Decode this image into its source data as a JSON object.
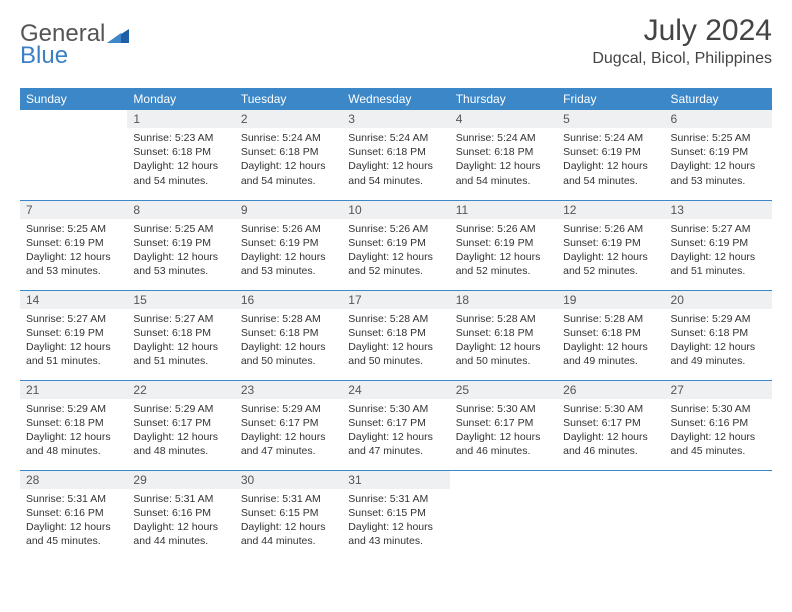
{
  "logo": {
    "text1": "General",
    "text2": "Blue"
  },
  "title": "July 2024",
  "location": "Dugcal, Bicol, Philippines",
  "colors": {
    "header_bg": "#3b87c8",
    "header_fg": "#ffffff",
    "daynum_bg": "#eef0f2",
    "rule": "#3b87c8"
  },
  "weekdays": [
    "Sunday",
    "Monday",
    "Tuesday",
    "Wednesday",
    "Thursday",
    "Friday",
    "Saturday"
  ],
  "weeks": [
    [
      {
        "n": "",
        "sr": "",
        "ss": "",
        "dl": ""
      },
      {
        "n": "1",
        "sr": "Sunrise: 5:23 AM",
        "ss": "Sunset: 6:18 PM",
        "dl": "Daylight: 12 hours and 54 minutes."
      },
      {
        "n": "2",
        "sr": "Sunrise: 5:24 AM",
        "ss": "Sunset: 6:18 PM",
        "dl": "Daylight: 12 hours and 54 minutes."
      },
      {
        "n": "3",
        "sr": "Sunrise: 5:24 AM",
        "ss": "Sunset: 6:18 PM",
        "dl": "Daylight: 12 hours and 54 minutes."
      },
      {
        "n": "4",
        "sr": "Sunrise: 5:24 AM",
        "ss": "Sunset: 6:18 PM",
        "dl": "Daylight: 12 hours and 54 minutes."
      },
      {
        "n": "5",
        "sr": "Sunrise: 5:24 AM",
        "ss": "Sunset: 6:19 PM",
        "dl": "Daylight: 12 hours and 54 minutes."
      },
      {
        "n": "6",
        "sr": "Sunrise: 5:25 AM",
        "ss": "Sunset: 6:19 PM",
        "dl": "Daylight: 12 hours and 53 minutes."
      }
    ],
    [
      {
        "n": "7",
        "sr": "Sunrise: 5:25 AM",
        "ss": "Sunset: 6:19 PM",
        "dl": "Daylight: 12 hours and 53 minutes."
      },
      {
        "n": "8",
        "sr": "Sunrise: 5:25 AM",
        "ss": "Sunset: 6:19 PM",
        "dl": "Daylight: 12 hours and 53 minutes."
      },
      {
        "n": "9",
        "sr": "Sunrise: 5:26 AM",
        "ss": "Sunset: 6:19 PM",
        "dl": "Daylight: 12 hours and 53 minutes."
      },
      {
        "n": "10",
        "sr": "Sunrise: 5:26 AM",
        "ss": "Sunset: 6:19 PM",
        "dl": "Daylight: 12 hours and 52 minutes."
      },
      {
        "n": "11",
        "sr": "Sunrise: 5:26 AM",
        "ss": "Sunset: 6:19 PM",
        "dl": "Daylight: 12 hours and 52 minutes."
      },
      {
        "n": "12",
        "sr": "Sunrise: 5:26 AM",
        "ss": "Sunset: 6:19 PM",
        "dl": "Daylight: 12 hours and 52 minutes."
      },
      {
        "n": "13",
        "sr": "Sunrise: 5:27 AM",
        "ss": "Sunset: 6:19 PM",
        "dl": "Daylight: 12 hours and 51 minutes."
      }
    ],
    [
      {
        "n": "14",
        "sr": "Sunrise: 5:27 AM",
        "ss": "Sunset: 6:19 PM",
        "dl": "Daylight: 12 hours and 51 minutes."
      },
      {
        "n": "15",
        "sr": "Sunrise: 5:27 AM",
        "ss": "Sunset: 6:18 PM",
        "dl": "Daylight: 12 hours and 51 minutes."
      },
      {
        "n": "16",
        "sr": "Sunrise: 5:28 AM",
        "ss": "Sunset: 6:18 PM",
        "dl": "Daylight: 12 hours and 50 minutes."
      },
      {
        "n": "17",
        "sr": "Sunrise: 5:28 AM",
        "ss": "Sunset: 6:18 PM",
        "dl": "Daylight: 12 hours and 50 minutes."
      },
      {
        "n": "18",
        "sr": "Sunrise: 5:28 AM",
        "ss": "Sunset: 6:18 PM",
        "dl": "Daylight: 12 hours and 50 minutes."
      },
      {
        "n": "19",
        "sr": "Sunrise: 5:28 AM",
        "ss": "Sunset: 6:18 PM",
        "dl": "Daylight: 12 hours and 49 minutes."
      },
      {
        "n": "20",
        "sr": "Sunrise: 5:29 AM",
        "ss": "Sunset: 6:18 PM",
        "dl": "Daylight: 12 hours and 49 minutes."
      }
    ],
    [
      {
        "n": "21",
        "sr": "Sunrise: 5:29 AM",
        "ss": "Sunset: 6:18 PM",
        "dl": "Daylight: 12 hours and 48 minutes."
      },
      {
        "n": "22",
        "sr": "Sunrise: 5:29 AM",
        "ss": "Sunset: 6:17 PM",
        "dl": "Daylight: 12 hours and 48 minutes."
      },
      {
        "n": "23",
        "sr": "Sunrise: 5:29 AM",
        "ss": "Sunset: 6:17 PM",
        "dl": "Daylight: 12 hours and 47 minutes."
      },
      {
        "n": "24",
        "sr": "Sunrise: 5:30 AM",
        "ss": "Sunset: 6:17 PM",
        "dl": "Daylight: 12 hours and 47 minutes."
      },
      {
        "n": "25",
        "sr": "Sunrise: 5:30 AM",
        "ss": "Sunset: 6:17 PM",
        "dl": "Daylight: 12 hours and 46 minutes."
      },
      {
        "n": "26",
        "sr": "Sunrise: 5:30 AM",
        "ss": "Sunset: 6:17 PM",
        "dl": "Daylight: 12 hours and 46 minutes."
      },
      {
        "n": "27",
        "sr": "Sunrise: 5:30 AM",
        "ss": "Sunset: 6:16 PM",
        "dl": "Daylight: 12 hours and 45 minutes."
      }
    ],
    [
      {
        "n": "28",
        "sr": "Sunrise: 5:31 AM",
        "ss": "Sunset: 6:16 PM",
        "dl": "Daylight: 12 hours and 45 minutes."
      },
      {
        "n": "29",
        "sr": "Sunrise: 5:31 AM",
        "ss": "Sunset: 6:16 PM",
        "dl": "Daylight: 12 hours and 44 minutes."
      },
      {
        "n": "30",
        "sr": "Sunrise: 5:31 AM",
        "ss": "Sunset: 6:15 PM",
        "dl": "Daylight: 12 hours and 44 minutes."
      },
      {
        "n": "31",
        "sr": "Sunrise: 5:31 AM",
        "ss": "Sunset: 6:15 PM",
        "dl": "Daylight: 12 hours and 43 minutes."
      },
      {
        "n": "",
        "sr": "",
        "ss": "",
        "dl": ""
      },
      {
        "n": "",
        "sr": "",
        "ss": "",
        "dl": ""
      },
      {
        "n": "",
        "sr": "",
        "ss": "",
        "dl": ""
      }
    ]
  ]
}
